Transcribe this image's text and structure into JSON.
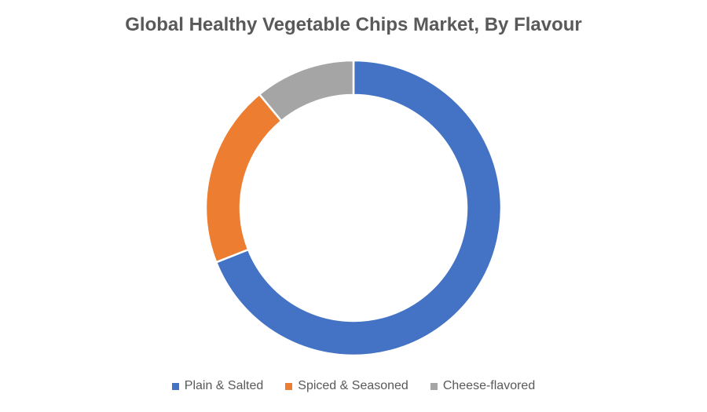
{
  "chart_data": {
    "type": "pie",
    "variant": "donut",
    "title": "Global Healthy Vegetable Chips Market, By Flavour",
    "categories": [
      "Plain & Salted",
      "Spiced & Seasoned",
      "Cheese-flavored"
    ],
    "values": [
      69,
      20,
      11
    ],
    "value_unit": "percent share (estimated)",
    "colors": [
      "#4472C4",
      "#ED7D31",
      "#A5A5A5"
    ],
    "legend_position": "bottom",
    "slice_border_color": "#FFFFFF"
  }
}
